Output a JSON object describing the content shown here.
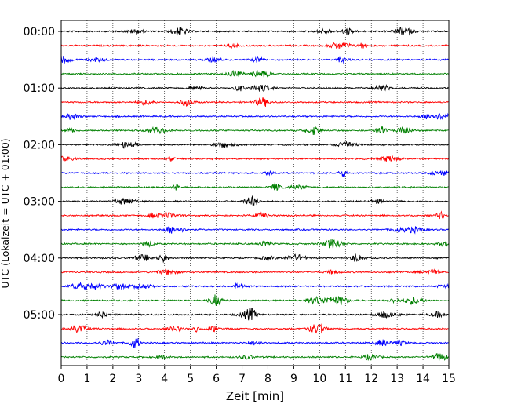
{
  "chart_data": {
    "type": "line",
    "title": "",
    "xlabel": "Zeit  [min]",
    "ylabel": "UTC (Lokalzeit = UTC + 01:00)",
    "xlim": [
      0,
      15
    ],
    "x_ticks": [
      "0",
      "1",
      "2",
      "3",
      "4",
      "5",
      "6",
      "7",
      "8",
      "9",
      "10",
      "11",
      "12",
      "13",
      "14",
      "15"
    ],
    "y_tick_labels": [
      "00:00",
      "01:00",
      "02:00",
      "03:00",
      "04:00",
      "05:00"
    ],
    "grid": "vertical-dotted",
    "trace_interval_minutes": 15,
    "trace_count": 24,
    "trace_colors": [
      "#000000",
      "#ff0000",
      "#0000ff",
      "#008000"
    ],
    "legend": "none"
  }
}
